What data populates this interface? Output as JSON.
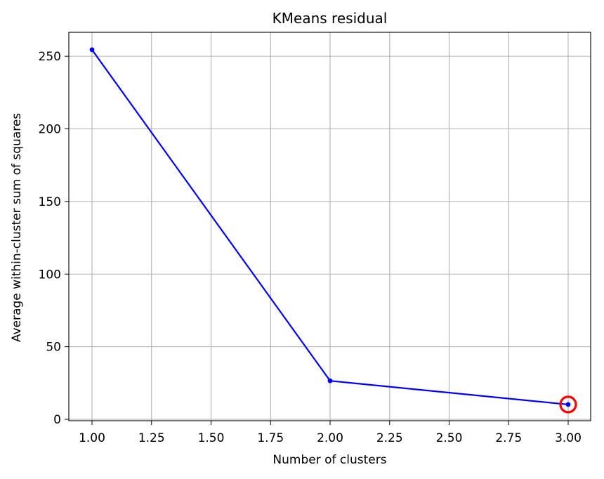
{
  "chart_data": {
    "type": "line",
    "title": "KMeans residual",
    "xlabel": "Number of clusters",
    "ylabel": "Average within-cluster sum of squares",
    "xlim": [
      0.9,
      3.1
    ],
    "ylim": [
      -1,
      267
    ],
    "xticks": [
      1.0,
      1.25,
      1.5,
      1.75,
      2.0,
      2.25,
      2.5,
      2.75,
      3.0
    ],
    "xtick_labels": [
      "1.00",
      "1.25",
      "1.50",
      "1.75",
      "2.00",
      "2.25",
      "2.50",
      "2.75",
      "3.00"
    ],
    "yticks": [
      0,
      50,
      100,
      150,
      200,
      250
    ],
    "ytick_labels": [
      "0",
      "50",
      "100",
      "150",
      "200",
      "250"
    ],
    "grid": true,
    "series": [
      {
        "name": "residual",
        "color": "#0000ff",
        "x": [
          1,
          2,
          3
        ],
        "y": [
          254.5,
          26.5,
          10.2
        ],
        "marker": "point"
      }
    ],
    "highlight": {
      "x": 3,
      "y": 10.2,
      "color": "#ff0000",
      "marker": "circle"
    }
  }
}
